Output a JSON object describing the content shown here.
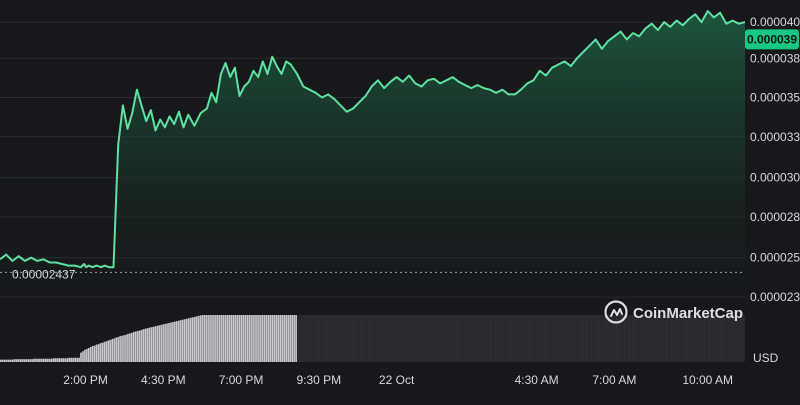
{
  "chart_data": {
    "type": "area",
    "title": "",
    "xlabel": "",
    "ylabel": "",
    "ylim": [
      2.21e-05,
      4.12e-05
    ],
    "y_ticks": [
      "0.000040",
      "0.000038",
      "0.000035",
      "0.000033",
      "0.000030",
      "0.000028",
      "0.000025",
      "0.000023"
    ],
    "y_tick_values": [
      4.03e-05,
      3.8e-05,
      3.55e-05,
      3.3e-05,
      3.04e-05,
      2.79e-05,
      2.53e-05,
      2.28e-05
    ],
    "x_ticks": [
      "2:00 PM",
      "4:30 PM",
      "7:00 PM",
      "9:30 PM",
      "22 Oct",
      "4:30 AM",
      "7:00 AM",
      "10:00 AM"
    ],
    "x_tick_values": [
      2.0,
      4.5,
      7.0,
      9.5,
      12.0,
      16.5,
      19.0,
      22.0
    ],
    "x_unit": "hours from 12:00 AM of the start day",
    "current_price": "0.000039",
    "current_price_value": 3.92e-05,
    "reference_price": "0.00002437",
    "reference_price_value": 2.437e-05,
    "volume_label": "USD",
    "watermark": "CoinMarketCap",
    "colors": {
      "background": "#17181b",
      "line": "#5ee0a0",
      "fill_top": "#1c5a3e",
      "fill_bottom": "#17181b",
      "grid": "#2a2c31",
      "axis_text": "#d6d8dc",
      "price_badge_bg": "#16c784",
      "price_badge_text": "#0e1512",
      "volume_bar_light": "#c8cacd",
      "volume_bar_dark": "#2c2e33",
      "reference_line": "#9aa0a6"
    },
    "series": [
      {
        "x": [
          -0.75,
          -0.55,
          -0.35,
          -0.15,
          0.05,
          0.25,
          0.45,
          0.65,
          0.85,
          1.05,
          1.25,
          1.45,
          1.65,
          1.85,
          1.95,
          2.02,
          2.1,
          2.22,
          2.35,
          2.5,
          2.62,
          2.75,
          2.9,
          3.05,
          3.2,
          3.35,
          3.5,
          3.65,
          3.8,
          3.95,
          4.1,
          4.25,
          4.4,
          4.55,
          4.7,
          4.85,
          5.0,
          5.15,
          5.3,
          5.5,
          5.7,
          5.9,
          6.05,
          6.2,
          6.35,
          6.5,
          6.65,
          6.8,
          6.95,
          7.1,
          7.25,
          7.4,
          7.55,
          7.7,
          7.85,
          8.0,
          8.15,
          8.3,
          8.45,
          8.6,
          8.8,
          9.0,
          9.2,
          9.4,
          9.6,
          9.8,
          10.0,
          10.2,
          10.4,
          10.6,
          10.8,
          11.0,
          11.2,
          11.4,
          11.6,
          11.8,
          12.0,
          12.2,
          12.4,
          12.6,
          12.8,
          13.0,
          13.2,
          13.4,
          13.6,
          13.8,
          14.0,
          14.2,
          14.4,
          14.6,
          14.8,
          15.0,
          15.2,
          15.4,
          15.6,
          15.8,
          16.0,
          16.2,
          16.4,
          16.6,
          16.8,
          17.0,
          17.2,
          17.4,
          17.6,
          17.8,
          18.0,
          18.2,
          18.4,
          18.6,
          18.8,
          19.0,
          19.2,
          19.4,
          19.6,
          19.8,
          20.0,
          20.2,
          20.4,
          20.6,
          20.8,
          21.0,
          21.2,
          21.4,
          21.6,
          21.8,
          22.0,
          22.2,
          22.4,
          22.6,
          22.8,
          23.0,
          23.2
        ],
        "y": [
          2.52e-05,
          2.55e-05,
          2.51e-05,
          2.54e-05,
          2.51e-05,
          2.53e-05,
          2.51e-05,
          2.52e-05,
          2.5e-05,
          2.5e-05,
          2.49e-05,
          2.48e-05,
          2.48e-05,
          2.47e-05,
          2.49e-05,
          2.47e-05,
          2.48e-05,
          2.47e-05,
          2.48e-05,
          2.47e-05,
          2.48e-05,
          2.47e-05,
          2.47e-05,
          3.25e-05,
          3.5e-05,
          3.35e-05,
          3.45e-05,
          3.6e-05,
          3.5e-05,
          3.4e-05,
          3.47e-05,
          3.34e-05,
          3.41e-05,
          3.36e-05,
          3.43e-05,
          3.38e-05,
          3.46e-05,
          3.36e-05,
          3.44e-05,
          3.37e-05,
          3.45e-05,
          3.48e-05,
          3.58e-05,
          3.52e-05,
          3.7e-05,
          3.77e-05,
          3.68e-05,
          3.74e-05,
          3.56e-05,
          3.62e-05,
          3.65e-05,
          3.72e-05,
          3.68e-05,
          3.78e-05,
          3.7e-05,
          3.81e-05,
          3.75e-05,
          3.7e-05,
          3.78e-05,
          3.76e-05,
          3.7e-05,
          3.62e-05,
          3.6e-05,
          3.58e-05,
          3.55e-05,
          3.57e-05,
          3.54e-05,
          3.5e-05,
          3.46e-05,
          3.48e-05,
          3.52e-05,
          3.56e-05,
          3.62e-05,
          3.66e-05,
          3.61e-05,
          3.65e-05,
          3.68e-05,
          3.65e-05,
          3.69e-05,
          3.64e-05,
          3.62e-05,
          3.66e-05,
          3.67e-05,
          3.64e-05,
          3.66e-05,
          3.68e-05,
          3.65e-05,
          3.63e-05,
          3.61e-05,
          3.63e-05,
          3.61e-05,
          3.6e-05,
          3.58e-05,
          3.6e-05,
          3.57e-05,
          3.57e-05,
          3.6e-05,
          3.64e-05,
          3.66e-05,
          3.72e-05,
          3.69e-05,
          3.74e-05,
          3.76e-05,
          3.78e-05,
          3.75e-05,
          3.8e-05,
          3.84e-05,
          3.88e-05,
          3.92e-05,
          3.86e-05,
          3.91e-05,
          3.94e-05,
          3.97e-05,
          3.92e-05,
          3.96e-05,
          3.94e-05,
          3.99e-05,
          4.02e-05,
          3.98e-05,
          4.03e-05,
          4e-05,
          4.04e-05,
          4.01e-05,
          4.05e-05,
          4.08e-05,
          4.03e-05,
          4.1e-05,
          4.06e-05,
          4.09e-05,
          4.02e-05,
          4.04e-05,
          4.02e-05,
          4.03e-05
        ]
      }
    ],
    "volume": {
      "x_start": -0.75,
      "x_end": 23.2,
      "split_x": 8.75,
      "values": [
        0.05,
        0.05,
        0.05,
        0.05,
        0.05,
        0.05,
        0.05,
        0.06,
        0.06,
        0.06,
        0.06,
        0.06,
        0.06,
        0.06,
        0.06,
        0.06,
        0.06,
        0.07,
        0.07,
        0.07,
        0.07,
        0.07,
        0.07,
        0.07,
        0.07,
        0.07,
        0.07,
        0.08,
        0.08,
        0.08,
        0.08,
        0.08,
        0.08,
        0.08,
        0.08,
        0.09,
        0.09,
        0.09,
        0.09,
        0.09,
        0.09,
        0.2,
        0.23,
        0.26,
        0.28,
        0.3,
        0.32,
        0.34,
        0.35,
        0.37,
        0.38,
        0.4,
        0.41,
        0.43,
        0.44,
        0.46,
        0.47,
        0.49,
        0.5,
        0.52,
        0.53,
        0.55,
        0.56,
        0.57,
        0.58,
        0.6,
        0.61,
        0.62,
        0.64,
        0.65,
        0.66,
        0.67,
        0.68,
        0.7,
        0.71,
        0.72,
        0.73,
        0.74,
        0.75,
        0.76,
        0.77,
        0.78,
        0.79,
        0.8,
        0.81,
        0.82,
        0.83,
        0.84,
        0.85,
        0.86,
        0.87,
        0.88,
        0.89,
        0.9,
        0.91,
        0.92,
        0.93,
        0.94,
        0.95,
        0.96,
        0.97,
        0.98,
        0.99,
        1.0,
        1.0,
        1.0,
        1.0,
        1.0,
        1.0,
        1.0,
        1.0,
        1.0,
        1.0,
        1.0,
        1.0,
        1.0,
        1.0,
        1.0,
        1.0,
        1.0,
        1.0,
        1.0,
        1.0,
        1.0,
        1.0,
        1.0,
        1.0,
        1.0,
        1.0,
        1.0,
        1.0,
        1.0,
        1.0,
        1.0,
        1.0,
        1.0,
        1.0,
        1.0,
        1.0,
        1.0,
        1.0,
        1.0,
        1.0,
        1.0,
        1.0,
        1.0,
        1.0,
        1.0,
        1.0,
        1.0,
        1.0,
        1.0,
        1.0,
        1.0,
        1.0,
        1.0,
        1.0,
        1.0,
        1.0,
        1.0,
        1.0,
        1.0,
        1.0,
        1.0,
        1.0,
        1.0,
        1.0,
        1.0,
        1.0,
        1.0,
        1.0,
        1.0,
        1.0,
        1.0,
        1.0,
        1.0,
        1.0,
        1.0,
        1.0,
        1.0,
        1.0,
        1.0,
        1.0,
        1.0,
        1.0,
        1.0,
        1.0,
        1.0,
        1.0,
        1.0,
        1.0,
        1.0,
        1.0,
        1.0,
        1.0,
        1.0,
        1.0,
        1.0,
        1.0,
        1.0,
        1.0,
        1.0,
        1.0,
        1.0,
        1.0,
        1.0,
        1.0,
        1.0,
        1.0,
        1.0,
        1.0,
        1.0,
        1.0,
        1.0,
        1.0,
        1.0,
        1.0,
        1.0,
        1.0,
        1.0,
        1.0,
        1.0,
        1.0,
        1.0,
        1.0,
        1.0,
        1.0,
        1.0,
        1.0,
        1.0,
        1.0,
        1.0,
        1.0,
        1.0,
        1.0,
        1.0,
        1.0,
        1.0,
        1.0,
        1.0,
        1.0,
        1.0,
        1.0,
        1.0,
        1.0,
        1.0,
        1.0,
        1.0,
        1.0,
        1.0,
        1.0,
        1.0,
        1.0,
        1.0,
        1.0,
        1.0,
        1.0,
        1.0,
        1.0,
        1.0,
        1.0,
        1.0,
        1.0,
        1.0,
        1.0,
        1.0,
        1.0,
        1.0,
        1.0,
        1.0,
        1.0,
        1.0,
        1.0,
        1.0,
        1.0,
        1.0,
        1.0,
        1.0,
        1.0,
        1.0,
        1.0,
        1.0,
        1.0,
        1.0,
        1.0,
        1.0,
        1.0,
        1.0,
        1.0,
        1.0,
        1.0,
        1.0,
        1.0,
        1.0,
        1.0,
        1.0,
        1.0,
        1.0,
        1.0,
        1.0,
        1.0,
        1.0,
        1.0,
        1.0,
        1.0,
        1.0,
        1.0,
        1.0,
        1.0,
        1.0,
        1.0,
        1.0,
        1.0,
        1.0,
        1.0,
        1.0,
        1.0,
        1.0,
        1.0,
        1.0,
        1.0,
        1.0,
        1.0,
        1.0,
        1.0,
        1.0,
        1.0,
        1.0,
        1.0,
        1.0,
        1.0,
        1.0,
        1.0,
        1.0,
        1.0,
        1.0,
        1.0,
        1.0,
        1.0,
        1.0,
        1.0,
        1.0,
        1.0,
        1.0,
        1.0,
        1.0,
        1.0,
        1.0,
        1.0,
        1.0,
        1.0,
        1.0,
        1.0,
        1.0,
        1.0,
        1.0,
        1.0,
        1.0,
        1.0,
        1.0,
        1.0,
        1.0,
        1.0,
        1.0,
        1.0,
        1.0,
        1.0,
        1.0,
        1.0,
        1.0,
        1.0,
        1.0,
        1.0,
        1.0,
        1.0,
        1.0,
        1.0,
        1.0,
        1.0,
        1.0,
        1.0
      ]
    },
    "grid": true,
    "legend": "none"
  }
}
